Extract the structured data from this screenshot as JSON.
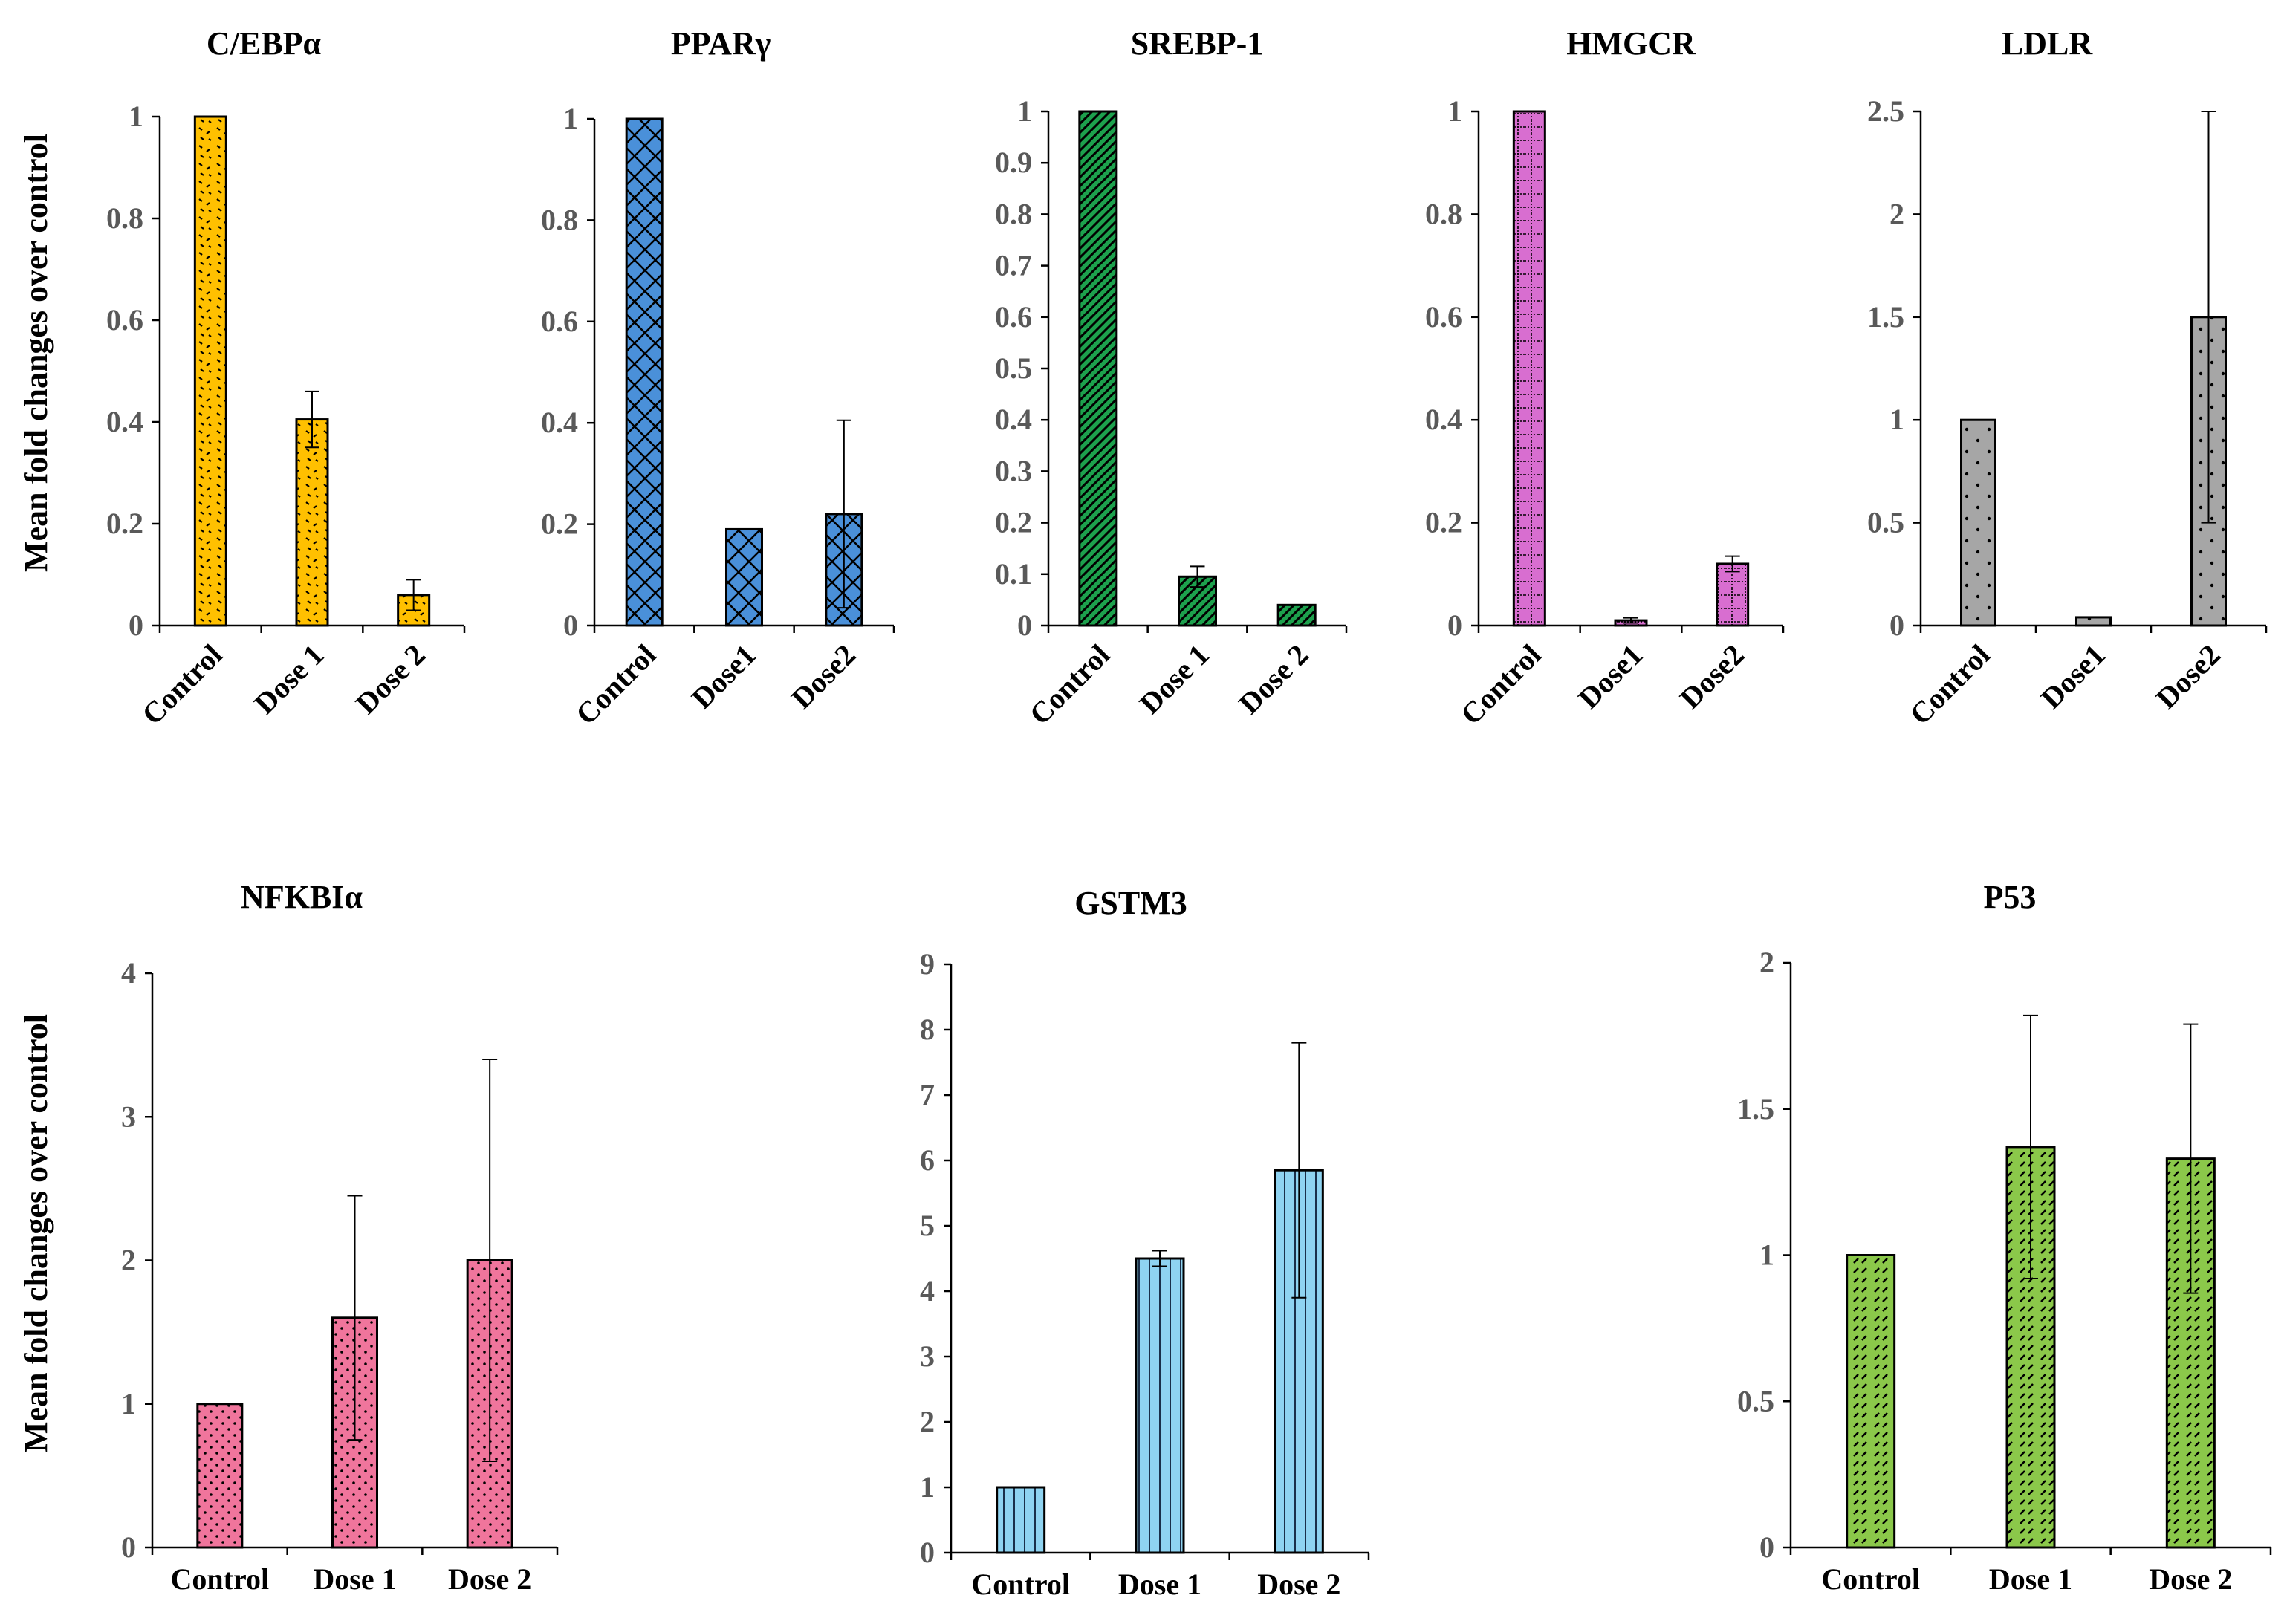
{
  "chart_data": [
    {
      "type": "bar",
      "title": "C/EBPα",
      "ylabel": "Mean fold changes over control",
      "categories": [
        "Control",
        "Dose 1",
        "Dose 2"
      ],
      "values": [
        1.0,
        0.405,
        0.06
      ],
      "errors": [
        0.0,
        0.055,
        0.03
      ],
      "ylim": [
        0,
        1
      ],
      "yticks": [
        "0",
        "0.2",
        "0.4",
        "0.6",
        "0.8",
        "1"
      ],
      "color": "#FFC000",
      "pattern": "confetti",
      "grid": false,
      "legend": "none"
    },
    {
      "type": "bar",
      "title": "PPARγ",
      "categories": [
        "Control",
        "Dose1",
        "Dose2"
      ],
      "values": [
        1.0,
        0.19,
        0.22
      ],
      "errors": [
        0.0,
        0.0,
        0.185
      ],
      "ylim": [
        0,
        1
      ],
      "yticks": [
        "0",
        "0.2",
        "0.4",
        "0.6",
        "0.8",
        "1"
      ],
      "color": "#4A90D9",
      "pattern": "crosshatch",
      "grid": false,
      "legend": "none"
    },
    {
      "type": "bar",
      "title": "SREBP-1",
      "categories": [
        "Control",
        "Dose 1",
        "Dose 2"
      ],
      "values": [
        1.0,
        0.095,
        0.04
      ],
      "errors": [
        0.0,
        0.02,
        0.0
      ],
      "ylim": [
        0,
        1
      ],
      "yticks": [
        "0",
        "0.1",
        "0.2",
        "0.3",
        "0.4",
        "0.5",
        "0.6",
        "0.7",
        "0.8",
        "0.9",
        "1"
      ],
      "color": "#1DA14D",
      "pattern": "diagonal",
      "grid": false,
      "legend": "none"
    },
    {
      "type": "bar",
      "title": "HMGCR",
      "categories": [
        "Control",
        "Dose1",
        "Dose2"
      ],
      "values": [
        1.0,
        0.01,
        0.12
      ],
      "errors": [
        0.0,
        0.005,
        0.015
      ],
      "ylim": [
        0,
        1
      ],
      "yticks": [
        "0",
        "0.2",
        "0.4",
        "0.6",
        "0.8",
        "1"
      ],
      "color": "#D86ED0",
      "pattern": "dotted-grid",
      "grid": false,
      "legend": "none"
    },
    {
      "type": "bar",
      "title": "LDLR",
      "categories": [
        "Control",
        "Dose1",
        "Dose2"
      ],
      "values": [
        1.0,
        0.04,
        1.5
      ],
      "errors": [
        0.0,
        0.0,
        1.0
      ],
      "ylim": [
        0,
        2.5
      ],
      "yticks": [
        "0",
        "0.5",
        "1",
        "1.5",
        "2",
        "2.5"
      ],
      "color": "#A6A6A6",
      "pattern": "sparse-dots",
      "grid": false,
      "legend": "none"
    },
    {
      "type": "bar",
      "title": "NFKBIα",
      "ylabel": "Mean fold changes over control",
      "categories": [
        "Control",
        "Dose 1",
        "Dose 2"
      ],
      "values": [
        1.0,
        1.6,
        2.0
      ],
      "errors": [
        0.0,
        0.85,
        1.4
      ],
      "ylim": [
        0,
        4
      ],
      "yticks": [
        "0",
        "1",
        "2",
        "3",
        "4"
      ],
      "color": "#F0759C",
      "pattern": "dots",
      "grid": false,
      "legend": "none"
    },
    {
      "type": "bar",
      "title": "GSTM3",
      "categories": [
        "Control",
        "Dose 1",
        "Dose 2"
      ],
      "values": [
        1.0,
        4.5,
        5.85
      ],
      "errors": [
        0.0,
        0.12,
        1.95
      ],
      "ylim": [
        0,
        9
      ],
      "yticks": [
        "0",
        "1",
        "2",
        "3",
        "4",
        "5",
        "6",
        "7",
        "8",
        "9"
      ],
      "color": "#8FD3F1",
      "pattern": "vertical",
      "grid": false,
      "legend": "none"
    },
    {
      "type": "bar",
      "title": "P53",
      "categories": [
        "Control",
        "Dose 1",
        "Dose 2"
      ],
      "values": [
        1.0,
        1.37,
        1.33
      ],
      "errors": [
        0.0,
        0.45,
        0.46
      ],
      "ylim": [
        0,
        2
      ],
      "yticks": [
        "0",
        "0.5",
        "1",
        "1.5",
        "2"
      ],
      "color": "#8BC84A",
      "pattern": "dashes",
      "grid": false,
      "legend": "none"
    }
  ]
}
